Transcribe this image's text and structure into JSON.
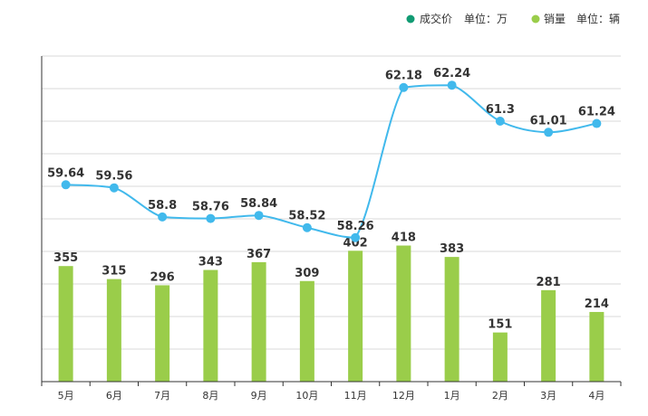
{
  "chart_data": {
    "type": "bar+line",
    "categories": [
      "5月",
      "6月",
      "7月",
      "8月",
      "9月",
      "10月",
      "11月",
      "12月",
      "1月",
      "2月",
      "3月",
      "4月"
    ],
    "series": [
      {
        "name": "成交价",
        "unit": "单位：万",
        "type": "line",
        "color": "#41b9ec",
        "values": [
          59.64,
          59.56,
          58.8,
          58.76,
          58.84,
          58.52,
          58.26,
          62.18,
          62.24,
          61.3,
          61.01,
          61.24
        ]
      },
      {
        "name": "销量",
        "unit": "单位：辆",
        "type": "bar",
        "color": "#9acd4a",
        "values": [
          355,
          315,
          296,
          343,
          367,
          309,
          402,
          418,
          383,
          151,
          281,
          214
        ]
      }
    ],
    "legend": {
      "placement": "top-right",
      "items": [
        {
          "name": "成交价",
          "unit": "单位：万",
          "color": "#119b73"
        },
        {
          "name": "销量",
          "unit": "单位：辆",
          "color": "#9acd4a"
        }
      ]
    },
    "bar_ylim": [
      0,
      1000
    ],
    "line_ylim": [
      54.5,
      63
    ],
    "grid": true
  }
}
